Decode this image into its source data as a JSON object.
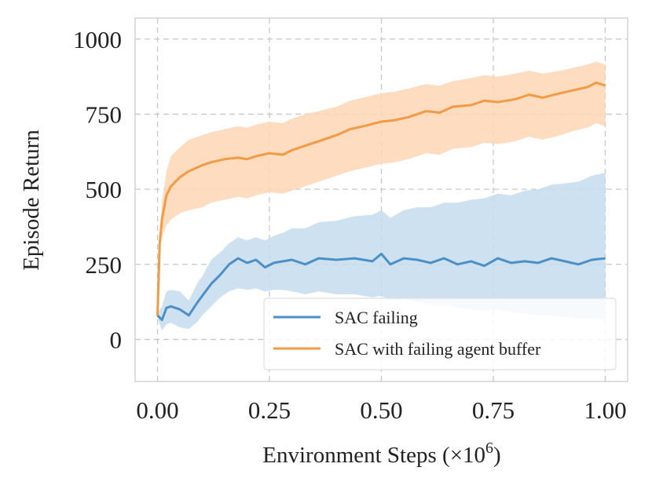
{
  "chart_data": {
    "type": "line",
    "title": "",
    "xlabel": "Environment Steps",
    "xlabel_multiplier": "(×10",
    "xlabel_exponent": "6",
    "xlabel_close": ")",
    "ylabel": "Episode Return",
    "xlim": [
      -0.05,
      1.05
    ],
    "ylim": [
      -140,
      1070
    ],
    "xticks": [
      0.0,
      0.25,
      0.5,
      0.75,
      1.0
    ],
    "xtick_labels": [
      "0.00",
      "0.25",
      "0.50",
      "0.75",
      "1.00"
    ],
    "yticks": [
      0,
      250,
      500,
      750,
      1000
    ],
    "ytick_labels": [
      "0",
      "250",
      "500",
      "750",
      "1000"
    ],
    "grid": true,
    "legend_position": "lower-right",
    "series": [
      {
        "name": "SAC failing",
        "color": "#4a90c6",
        "band_color": "#c6dcee",
        "x": [
          0.0,
          0.01,
          0.02,
          0.03,
          0.05,
          0.07,
          0.09,
          0.1,
          0.12,
          0.14,
          0.16,
          0.18,
          0.2,
          0.22,
          0.24,
          0.26,
          0.28,
          0.3,
          0.33,
          0.36,
          0.4,
          0.44,
          0.48,
          0.5,
          0.52,
          0.55,
          0.58,
          0.61,
          0.64,
          0.67,
          0.7,
          0.73,
          0.76,
          0.79,
          0.82,
          0.85,
          0.88,
          0.91,
          0.94,
          0.97,
          1.0
        ],
        "mean": [
          80,
          65,
          105,
          110,
          100,
          80,
          125,
          145,
          185,
          215,
          250,
          270,
          255,
          265,
          240,
          255,
          260,
          265,
          250,
          270,
          265,
          270,
          260,
          285,
          250,
          270,
          265,
          255,
          270,
          250,
          260,
          245,
          270,
          255,
          260,
          255,
          270,
          260,
          250,
          265,
          270
        ],
        "lower": [
          70,
          30,
          50,
          55,
          40,
          35,
          60,
          80,
          110,
          140,
          160,
          170,
          165,
          170,
          160,
          165,
          165,
          160,
          150,
          160,
          150,
          150,
          140,
          145,
          130,
          135,
          125,
          115,
          115,
          105,
          100,
          95,
          100,
          90,
          85,
          80,
          80,
          75,
          70,
          70,
          65
        ],
        "upper": [
          90,
          110,
          160,
          165,
          160,
          130,
          190,
          210,
          265,
          290,
          320,
          340,
          330,
          340,
          330,
          345,
          355,
          370,
          370,
          390,
          395,
          410,
          415,
          430,
          405,
          430,
          440,
          440,
          455,
          455,
          465,
          470,
          485,
          480,
          495,
          500,
          515,
          520,
          525,
          545,
          555
        ]
      },
      {
        "name": "SAC with failing agent buffer",
        "color": "#f39a44",
        "band_color": "#fdd6b5",
        "x": [
          0.0,
          0.005,
          0.01,
          0.02,
          0.03,
          0.05,
          0.07,
          0.1,
          0.12,
          0.15,
          0.18,
          0.2,
          0.22,
          0.25,
          0.28,
          0.3,
          0.33,
          0.36,
          0.4,
          0.43,
          0.46,
          0.5,
          0.53,
          0.56,
          0.6,
          0.63,
          0.66,
          0.7,
          0.73,
          0.76,
          0.8,
          0.83,
          0.86,
          0.9,
          0.93,
          0.96,
          0.98,
          1.0
        ],
        "mean": [
          80,
          320,
          400,
          480,
          510,
          540,
          560,
          580,
          590,
          600,
          605,
          600,
          610,
          620,
          615,
          630,
          645,
          660,
          680,
          700,
          710,
          725,
          730,
          740,
          760,
          755,
          775,
          780,
          795,
          790,
          800,
          815,
          805,
          820,
          830,
          840,
          855,
          845
        ],
        "lower": [
          70,
          300,
          340,
          380,
          400,
          420,
          430,
          440,
          455,
          465,
          475,
          470,
          480,
          490,
          485,
          495,
          510,
          525,
          545,
          560,
          570,
          585,
          590,
          600,
          620,
          615,
          635,
          640,
          655,
          650,
          660,
          675,
          665,
          680,
          695,
          705,
          720,
          710
        ],
        "upper": [
          90,
          340,
          460,
          560,
          610,
          640,
          665,
          680,
          690,
          700,
          710,
          705,
          715,
          725,
          720,
          735,
          750,
          760,
          775,
          795,
          805,
          820,
          825,
          835,
          850,
          845,
          860,
          870,
          880,
          875,
          885,
          895,
          885,
          895,
          905,
          915,
          925,
          915
        ]
      }
    ]
  }
}
